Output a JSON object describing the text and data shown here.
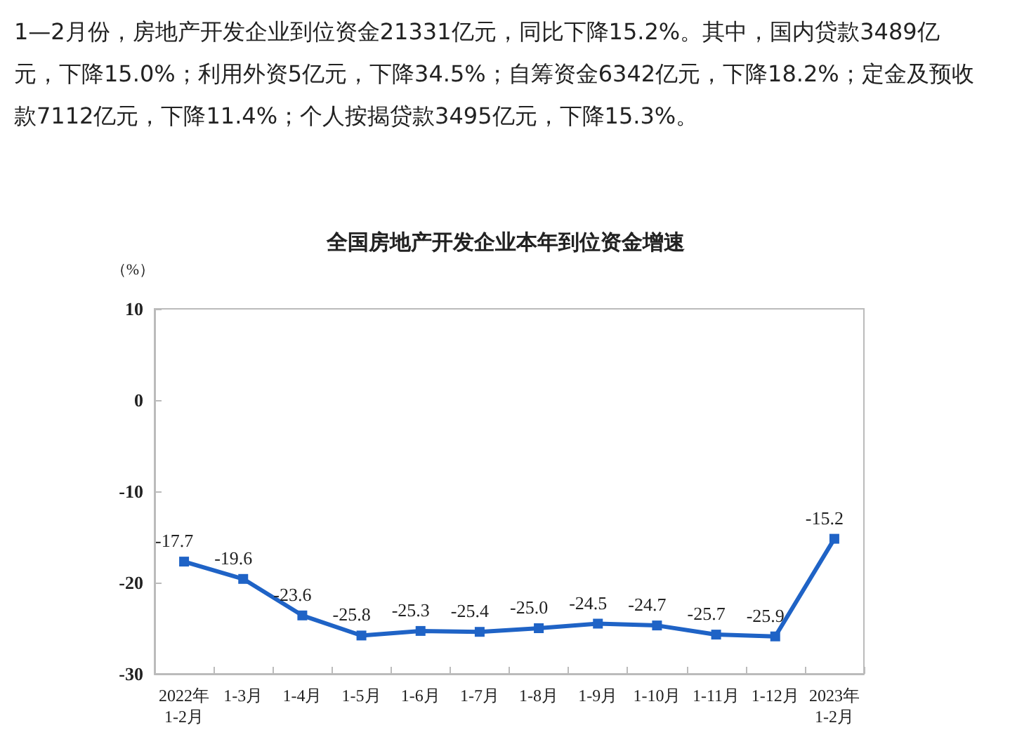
{
  "chart_data": {
    "type": "line",
    "title": "全国房地产开发企业本年到位资金增速",
    "ylabel": "（%）",
    "annotations": [
      "1—2月份，房地产开发企业到位资金21331亿元，同比下降15.2%。其中，国内贷款3489亿元，下降15.0%；利用外资5亿元，下降34.5%；自筹资金6342亿元，下降18.2%；定金及预收款7112亿元，下降11.4%；个人按揭贷款3495亿元，下降15.3%。"
    ],
    "categories": [
      "2022年\n1-2月",
      "1-3月",
      "1-4月",
      "1-5月",
      "1-6月",
      "1-7月",
      "1-8月",
      "1-9月",
      "1-10月",
      "1-11月",
      "1-12月",
      "2023年\n1-2月"
    ],
    "series": [
      {
        "color": "#1f63c6",
        "values": [
          -17.7,
          -19.6,
          -23.6,
          -25.8,
          -25.3,
          -25.4,
          -25.0,
          -24.5,
          -24.7,
          -25.7,
          -25.9,
          -15.2
        ],
        "value_labels": [
          "-17.7",
          "-19.6",
          "-23.6",
          "-25.8",
          "-25.3",
          "-25.4",
          "-25.0",
          "-24.5",
          "-24.7",
          "-25.7",
          "-25.9",
          "-15.2"
        ]
      }
    ],
    "ylim": [
      -30,
      10
    ],
    "yticks": [
      -30,
      -20,
      -10,
      0,
      10
    ],
    "marker": "square",
    "line_style": "solid"
  }
}
